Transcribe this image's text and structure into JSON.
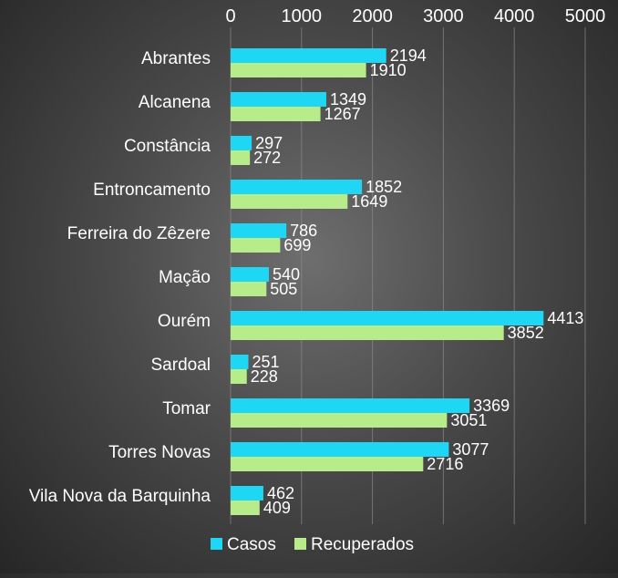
{
  "colors": {
    "casos": "#1fd6f5",
    "recuperados": "#b8ec8a",
    "text": "#ffffff",
    "grid": "#8a8a8a"
  },
  "chart_data": {
    "type": "bar",
    "orientation": "horizontal",
    "categories": [
      "Abrantes",
      "Alcanena",
      "Constância",
      "Entroncamento",
      "Ferreira do Zêzere",
      "Mação",
      "Ourém",
      "Sardoal",
      "Tomar",
      "Torres Novas",
      "Vila Nova da Barquinha"
    ],
    "series": [
      {
        "name": "Casos",
        "values": [
          2194,
          1349,
          297,
          1852,
          786,
          540,
          4413,
          251,
          3369,
          3077,
          462
        ]
      },
      {
        "name": "Recuperados",
        "values": [
          1910,
          1267,
          272,
          1649,
          699,
          505,
          3852,
          228,
          3051,
          2716,
          409
        ]
      }
    ],
    "ticks": [
      "0",
      "1000",
      "2000",
      "3000",
      "4000",
      "5000"
    ],
    "xlim": [
      0,
      5000
    ],
    "x_axis_position": "top",
    "grid": true,
    "legend": {
      "position": "bottom",
      "entries": [
        "Casos",
        "Recuperados"
      ]
    }
  }
}
